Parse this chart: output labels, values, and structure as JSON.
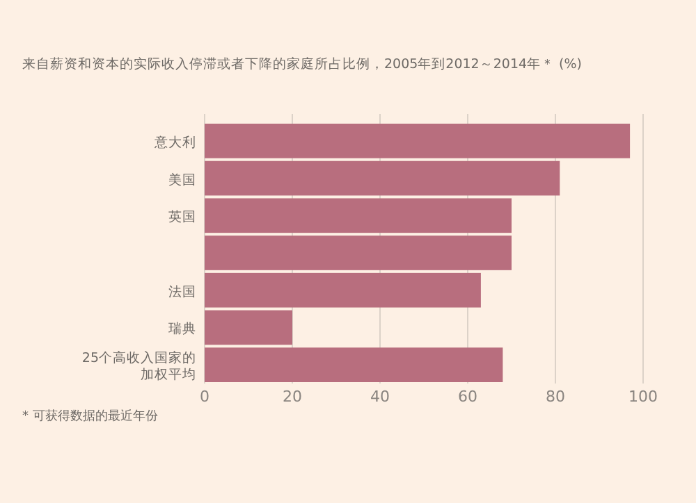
{
  "chart_data": {
    "type": "bar",
    "orientation": "horizontal",
    "title": "来自薪资和资本的实际收入停滞或者下降的家庭所占比例，2005年到2012～2014年＊ (%)",
    "categories": [
      "意大利",
      "美国",
      "英国",
      null,
      "法国",
      "瑞典",
      "25个高收入国家的加权平均"
    ],
    "values": [
      97,
      81,
      70,
      70,
      63,
      20,
      68
    ],
    "color": "#b86e7e",
    "xlim": [
      0,
      100
    ],
    "xticks": [
      0,
      20,
      40,
      60,
      80,
      100
    ],
    "grid": "x",
    "annotations": [
      "* 可获得数据的最近年份"
    ]
  }
}
